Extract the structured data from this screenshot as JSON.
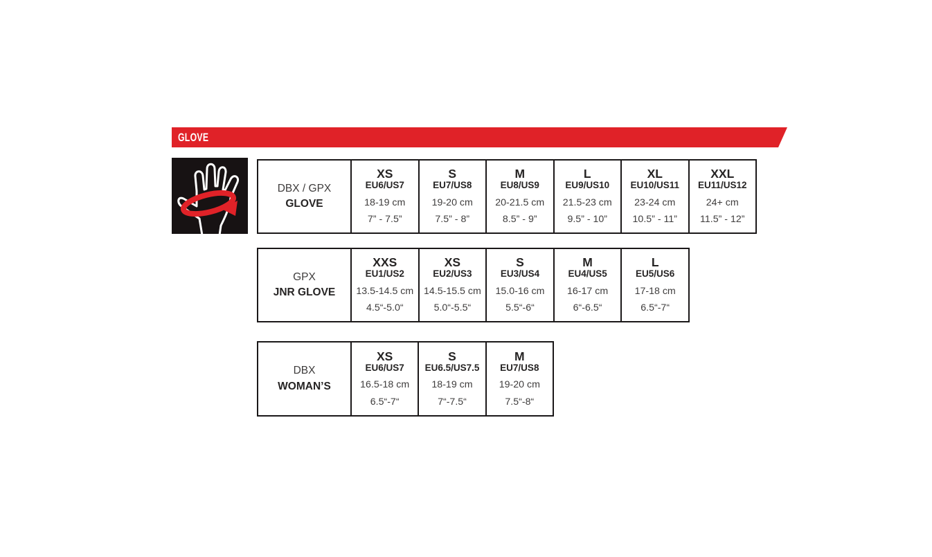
{
  "banner": {
    "title": "GLOVE",
    "color": "#e02228",
    "text_color": "#ffffff"
  },
  "icon": {
    "name": "hand-circumference-measure-icon",
    "background": "#171213",
    "hand_color": "#ffffff",
    "band_color": "#e02228"
  },
  "tables": [
    {
      "id": "dbx-gpx-glove",
      "label_line1": "DBX / GPX",
      "label_line2": "GLOVE",
      "columns": [
        {
          "size": "XS",
          "euus": "EU6/US7",
          "cm": "18-19 cm",
          "inch": "7” - 7.5”"
        },
        {
          "size": "S",
          "euus": "EU7/US8",
          "cm": "19-20 cm",
          "inch": "7.5” - 8”"
        },
        {
          "size": "M",
          "euus": "EU8/US9",
          "cm": "20-21.5 cm",
          "inch": "8.5” - 9”"
        },
        {
          "size": "L",
          "euus": "EU9/US10",
          "cm": "21.5-23 cm",
          "inch": "9.5” - 10”"
        },
        {
          "size": "XL",
          "euus": "EU10/US11",
          "cm": "23-24 cm",
          "inch": "10.5” - 11”"
        },
        {
          "size": "XXL",
          "euus": "EU11/US12",
          "cm": "24+ cm",
          "inch": "11.5” - 12”"
        }
      ]
    },
    {
      "id": "gpx-jnr-glove",
      "label_line1": "GPX",
      "label_line2": "JNR GLOVE",
      "columns": [
        {
          "size": "XXS",
          "euus": "EU1/US2",
          "cm": "13.5-14.5 cm",
          "inch": "4.5“-5.0“"
        },
        {
          "size": "XS",
          "euus": "EU2/US3",
          "cm": "14.5-15.5 cm",
          "inch": "5.0“-5.5“"
        },
        {
          "size": "S",
          "euus": "EU3/US4",
          "cm": "15.0-16 cm",
          "inch": "5.5“-6“"
        },
        {
          "size": "M",
          "euus": "EU4/US5",
          "cm": "16-17 cm",
          "inch": "6“-6.5“"
        },
        {
          "size": "L",
          "euus": "EU5/US6",
          "cm": "17-18 cm",
          "inch": "6.5“-7“"
        }
      ]
    },
    {
      "id": "dbx-womans",
      "label_line1": "DBX",
      "label_line2": "WOMAN’S",
      "columns": [
        {
          "size": "XS",
          "euus": "EU6/US7",
          "cm": "16.5-18 cm",
          "inch": "6.5“-7“"
        },
        {
          "size": "S",
          "euus": "EU6.5/US7.5",
          "cm": "18-19 cm",
          "inch": "7“-7.5“"
        },
        {
          "size": "M",
          "euus": "EU7/US8",
          "cm": "19-20 cm",
          "inch": "7.5“-8“"
        }
      ]
    }
  ]
}
